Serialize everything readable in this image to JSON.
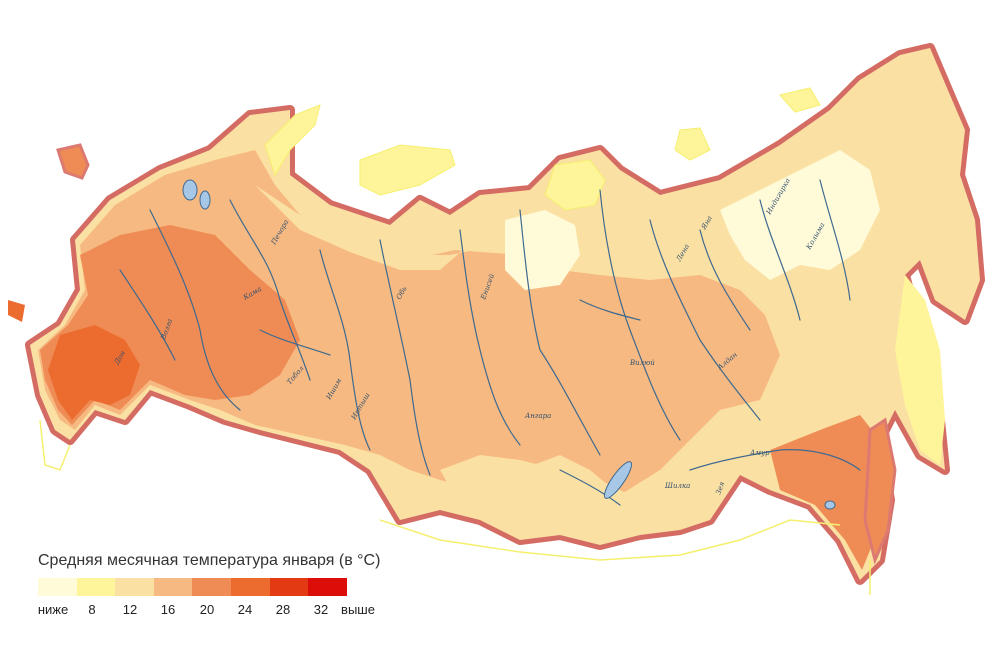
{
  "legend": {
    "title": "Средняя месячная температура января (в °C)",
    "colors": [
      "#fffbd9",
      "#fef59a",
      "#fbe0a3",
      "#f6b981",
      "#ef8c55",
      "#ec6b2f",
      "#e33a13",
      "#dc0e0a"
    ],
    "labels": [
      "ниже",
      "8",
      "12",
      "16",
      "20",
      "24",
      "28",
      "32",
      "выше"
    ]
  },
  "map": {
    "land_colors": {
      "coldest": "#fffbd9",
      "very_cold": "#fef59a",
      "cold": "#fbe0a3",
      "moderate": "#f6b981",
      "mild": "#ef8c55",
      "warm": "#ec6b2f",
      "border": "#dc7a72",
      "coast": "#f5ef6e",
      "rivers": "#3f6a90"
    },
    "river_labels": [
      "Лена",
      "Енисей",
      "Обь",
      "Иртыш",
      "Амур",
      "Ангара",
      "Волга",
      "Дон",
      "Колыма",
      "Индигирка",
      "Яна",
      "Вилюй",
      "Алдан",
      "Зея",
      "Шилка",
      "Тобол",
      "Ишим",
      "Кама",
      "Печора"
    ]
  }
}
